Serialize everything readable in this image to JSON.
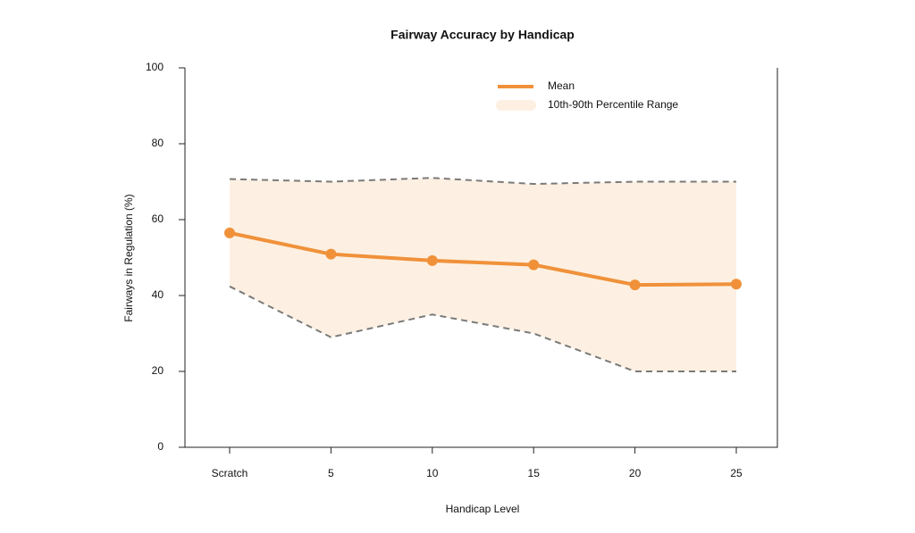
{
  "chart_data": {
    "type": "line",
    "title": "Fairway Accuracy by Handicap",
    "x_label": "Handicap Level",
    "y_label": "Fairways in Regulation (%)",
    "categories": [
      "Scratch",
      "5",
      "10",
      "15",
      "20",
      "25"
    ],
    "series": [
      {
        "name": "Mean",
        "color": "#f0913a",
        "values": [
          56.5,
          50.9,
          49.2,
          48.1,
          42.8,
          43.0
        ]
      }
    ],
    "band": {
      "name": "10th-90th Percentile Range",
      "color": "#fdf0e2",
      "line_color": "#7a7a7a",
      "lower": [
        42.4,
        29,
        35,
        30,
        20,
        20
      ],
      "upper": [
        70.7,
        70,
        71,
        69.4,
        70,
        70
      ]
    },
    "ylim": [
      0,
      100
    ],
    "yticks": [
      0,
      20,
      40,
      60,
      80,
      100
    ],
    "grid": false,
    "legend": "upper-right"
  }
}
